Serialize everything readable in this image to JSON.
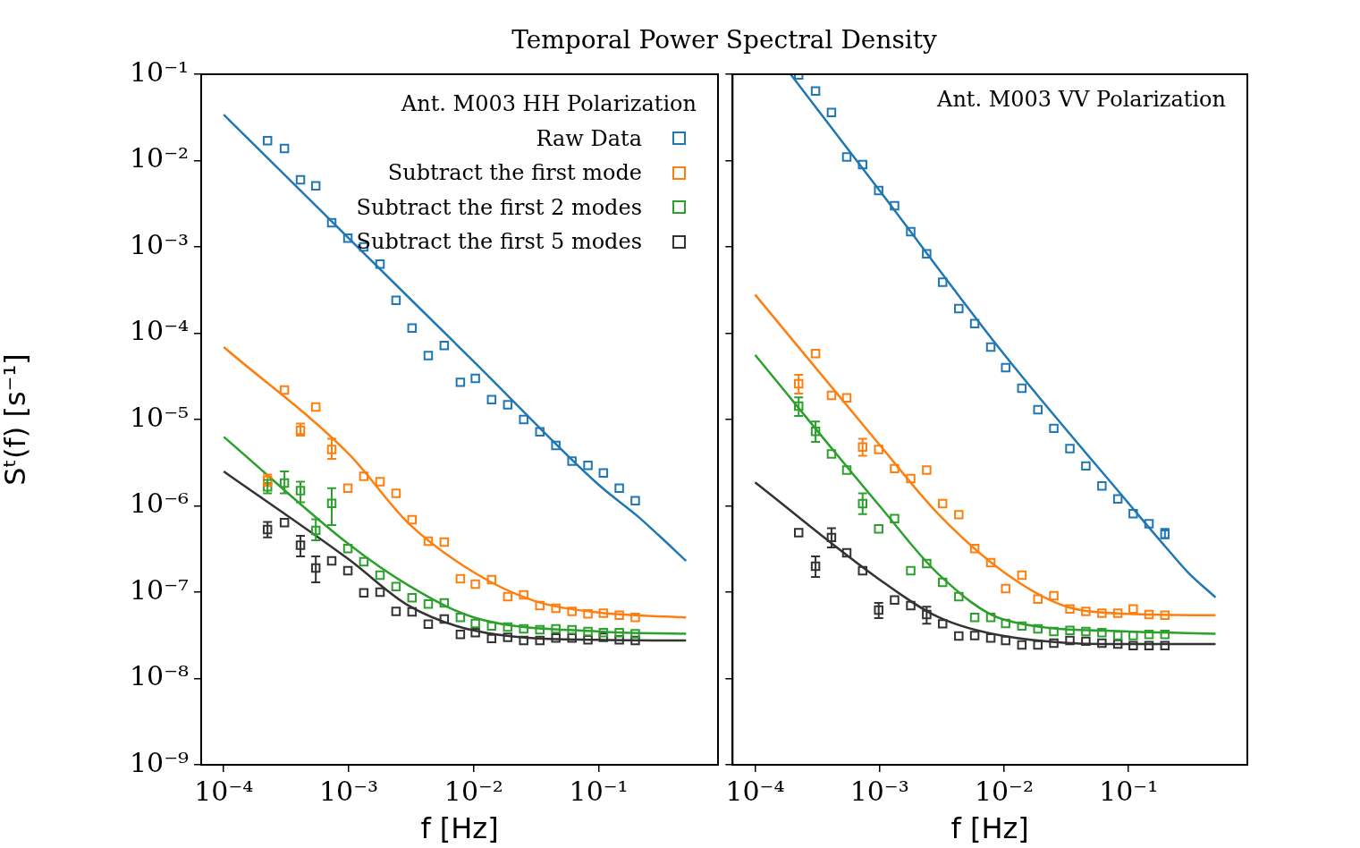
{
  "chart_data": [
    {
      "type": "scatter",
      "title": "Temporal Power Spectral Density",
      "xlabel": "f [Hz]",
      "ylabel": "Sᵗ(f) [s⁻¹]",
      "legend_title": "Ant. M003 HH Polarization",
      "legend": "top right",
      "log": "xy",
      "xlim": [
        6.6e-05,
        0.9
      ],
      "ylim": [
        1e-09,
        0.1
      ],
      "xticks": [
        {
          "value": 0.0001,
          "label": "10⁻⁴"
        },
        {
          "value": 0.001,
          "label": "10⁻³"
        },
        {
          "value": 0.01,
          "label": "10⁻²"
        },
        {
          "value": 0.1,
          "label": "10⁻¹"
        }
      ],
      "yticks": [
        {
          "value": 1e-09,
          "label": "10⁻⁹"
        },
        {
          "value": 1e-08,
          "label": "10⁻⁸"
        },
        {
          "value": 1e-07,
          "label": "10⁻⁷"
        },
        {
          "value": 1e-06,
          "label": "10⁻⁶"
        },
        {
          "value": 1e-05,
          "label": "10⁻⁵"
        },
        {
          "value": 0.0001,
          "label": "10⁻⁴"
        },
        {
          "value": 0.001,
          "label": "10⁻³"
        },
        {
          "value": 0.01,
          "label": "10⁻²"
        },
        {
          "value": 0.1,
          "label": "10⁻¹"
        }
      ],
      "x": [
        0.000224,
        0.000306,
        0.000411,
        0.000545,
        0.000731,
        0.000984,
        0.00132,
        0.00178,
        0.00239,
        0.00321,
        0.00433,
        0.00581,
        0.00782,
        0.0103,
        0.0139,
        0.0187,
        0.0251,
        0.0338,
        0.0454,
        0.0611,
        0.082,
        0.109,
        0.146,
        0.196
      ],
      "series": [
        {
          "name": "Raw Data",
          "marker": "square",
          "color": "#1f77b4",
          "values": [
            0.017,
            0.0138,
            0.006,
            0.0051,
            0.0019,
            0.00126,
            0.001,
            0.00063,
            0.00024,
            0.000115,
            5.5e-05,
            7.2e-05,
            2.7e-05,
            3e-05,
            1.7e-05,
            1.48e-05,
            1e-05,
            7.2e-06,
            5e-06,
            3.3e-06,
            2.95e-06,
            2.4e-06,
            1.6e-06,
            1.15e-06
          ]
        },
        {
          "name": "Subtract the first mode",
          "marker": "square",
          "color": "#ff7f0e",
          "values": [
            1.97e-06,
            2.2e-05,
            7.5e-06,
            1.4e-05,
            4.5e-06,
            1.6e-06,
            2.2e-06,
            1.9e-06,
            1.4e-06,
            6.9e-07,
            3.9e-07,
            3.8e-07,
            1.43e-07,
            1.24e-07,
            1.4e-07,
            8.9e-08,
            9.3e-08,
            7e-08,
            6.5e-08,
            6e-08,
            5.6e-08,
            5.7e-08,
            5.4e-08,
            5.1e-08
          ],
          "errors": [
            [
              1.7e-06,
              2.3e-06
            ],
            null,
            [
              6.5e-06,
              9e-06
            ],
            null,
            [
              3.5e-06,
              6e-06
            ],
            null,
            null,
            null,
            null,
            null,
            null,
            null,
            null,
            null,
            null,
            null,
            null,
            null,
            null,
            null,
            null,
            null,
            null,
            null
          ]
        },
        {
          "name": "Subtract the first 2 modes",
          "marker": "square",
          "color": "#2ca02c",
          "values": [
            1.66e-06,
            1.84e-06,
            1.5e-06,
            5.2e-07,
            1.07e-06,
            3.2e-07,
            2.25e-07,
            1.57e-07,
            1.16e-07,
            8.6e-08,
            7.3e-08,
            7.5e-08,
            5.1e-08,
            4.35e-08,
            4.05e-08,
            3.95e-08,
            3.76e-08,
            3.67e-08,
            3.76e-08,
            3.67e-08,
            3.5e-08,
            3.4e-08,
            3.4e-08,
            3.3e-08
          ],
          "errors": [
            [
              1.4e-06,
              2e-06
            ],
            [
              1.4e-06,
              2.5e-06
            ],
            [
              1.1e-06,
              1.9e-06
            ],
            [
              4e-07,
              7e-07
            ],
            [
              6e-07,
              1.6e-06
            ],
            null,
            null,
            null,
            null,
            null,
            null,
            null,
            null,
            null,
            null,
            null,
            null,
            null,
            null,
            null,
            null,
            null,
            null,
            null
          ]
        },
        {
          "name": "Subtract the first 5 modes",
          "marker": "square",
          "color": "#333333",
          "values": [
            5.3e-07,
            6.4e-07,
            3.5e-07,
            1.9e-07,
            2.3e-07,
            1.77e-07,
            9.8e-08,
            1e-07,
            6e-08,
            5.9e-08,
            4.25e-08,
            4.9e-08,
            3.24e-08,
            3.4e-08,
            2.9e-08,
            3e-08,
            2.75e-08,
            2.75e-08,
            2.95e-08,
            2.95e-08,
            2.8e-08,
            3e-08,
            2.8e-08,
            2.75e-08
          ],
          "errors": [
            [
              4.3e-07,
              6.5e-07
            ],
            null,
            [
              2.6e-07,
              4.5e-07
            ],
            [
              1.3e-07,
              2.6e-07
            ],
            null,
            null,
            null,
            null,
            null,
            null,
            null,
            null,
            null,
            null,
            null,
            null,
            null,
            null,
            null,
            null,
            null,
            null,
            null,
            null
          ]
        },
        {
          "type": "line",
          "color": "#1f77b4",
          "x": [
            0.0001,
            0.001,
            0.01,
            0.1,
            0.2,
            0.3,
            0.5
          ],
          "values": [
            0.034,
            0.00126,
            4.7e-05,
            1.75e-06,
            7.8e-07,
            4.6e-07,
            2.3e-07
          ],
          "marker": "none"
        },
        {
          "type": "line",
          "color": "#ff7f0e",
          "x": [
            0.0001,
            0.001,
            0.003,
            0.01,
            0.03,
            0.1,
            0.5
          ],
          "values": [
            6.9e-05,
            4e-06,
            6.3e-07,
            1.7e-07,
            8e-08,
            5.8e-08,
            5.1e-08
          ],
          "marker": "none"
        },
        {
          "type": "line",
          "color": "#2ca02c",
          "x": [
            0.0001,
            0.001,
            0.003,
            0.01,
            0.1,
            0.5
          ],
          "values": [
            6.3e-06,
            3.6e-07,
            1.2e-07,
            5.1e-08,
            3.5e-08,
            3.3e-08
          ],
          "marker": "none"
        },
        {
          "type": "line",
          "color": "#333333",
          "x": [
            0.0001,
            0.001,
            0.003,
            0.01,
            0.1,
            0.5
          ],
          "values": [
            2.5e-06,
            2.4e-07,
            7e-08,
            3.6e-08,
            2.8e-08,
            2.75e-08
          ],
          "marker": "none"
        }
      ]
    },
    {
      "type": "scatter",
      "xlabel": "f [Hz]",
      "annotations": [
        "Ant. M003 VV Polarization"
      ],
      "log": "xy",
      "tick_labels": "x",
      "xlim": [
        6.6e-05,
        0.9
      ],
      "ylim": [
        1e-09,
        0.1
      ],
      "xticks": [
        {
          "value": 0.0001,
          "label": "10⁻⁴"
        },
        {
          "value": 0.001,
          "label": "10⁻³"
        },
        {
          "value": 0.01,
          "label": "10⁻²"
        },
        {
          "value": 0.1,
          "label": "10⁻¹"
        }
      ],
      "yticks": [
        {
          "value": 1e-09,
          "label": null
        },
        {
          "value": 1e-08,
          "label": null
        },
        {
          "value": 1e-07,
          "label": null
        },
        {
          "value": 1e-06,
          "label": null
        },
        {
          "value": 1e-05,
          "label": null
        },
        {
          "value": 0.0001,
          "label": null
        },
        {
          "value": 0.001,
          "label": null
        },
        {
          "value": 0.01,
          "label": null
        },
        {
          "value": 0.1,
          "label": null
        }
      ],
      "x": [
        0.000224,
        0.000306,
        0.000411,
        0.000545,
        0.000731,
        0.000984,
        0.00132,
        0.00178,
        0.00239,
        0.00321,
        0.00433,
        0.00581,
        0.00782,
        0.0103,
        0.0139,
        0.0187,
        0.0251,
        0.0338,
        0.0454,
        0.0611,
        0.082,
        0.109,
        0.146,
        0.196
      ],
      "series": [
        {
          "marker": "square",
          "color": "#1f77b4",
          "values": [
            0.098,
            0.064,
            0.036,
            0.011,
            0.009,
            0.0045,
            0.003,
            0.0015,
            0.00083,
            0.00039,
            0.000193,
            0.000129,
            6.9e-05,
            4e-05,
            2.3e-05,
            1.3e-05,
            7.9e-06,
            4.6e-06,
            2.9e-06,
            1.7e-06,
            1.2e-06,
            8.1e-07,
            6.2e-07,
            4.7e-07
          ],
          "errors": [
            null,
            null,
            null,
            null,
            null,
            null,
            null,
            null,
            null,
            null,
            null,
            null,
            null,
            null,
            null,
            null,
            null,
            null,
            null,
            null,
            null,
            null,
            null,
            [
              4.2e-07,
              5.4e-07
            ]
          ]
        },
        {
          "marker": "square",
          "color": "#ff7f0e",
          "values": [
            2.6e-05,
            5.8e-05,
            1.9e-05,
            1.78e-05,
            4.8e-06,
            4.5e-06,
            2.7e-06,
            2.07e-06,
            2.6e-06,
            1.06e-06,
            7.9e-07,
            3.2e-07,
            2.2e-07,
            1.1e-07,
            1.57e-07,
            8.3e-08,
            9.1e-08,
            6.4e-08,
            6e-08,
            5.7e-08,
            5.7e-08,
            6.4e-08,
            5.5e-08,
            5.4e-08
          ],
          "errors": [
            [
              2e-05,
              3.3e-05
            ],
            null,
            null,
            null,
            [
              3.8e-06,
              6e-06
            ],
            null,
            null,
            null,
            null,
            null,
            null,
            null,
            null,
            null,
            null,
            null,
            null,
            null,
            null,
            null,
            null,
            null,
            null,
            null
          ]
        },
        {
          "marker": "square",
          "color": "#2ca02c",
          "values": [
            1.43e-05,
            7.3e-06,
            4e-06,
            2.6e-06,
            1.06e-06,
            5.4e-07,
            7.1e-07,
            1.77e-07,
            2.15e-07,
            1.3e-07,
            8.9e-08,
            5.1e-08,
            5.1e-08,
            4.35e-08,
            4.05e-08,
            3.76e-08,
            3.5e-08,
            3.6e-08,
            3.5e-08,
            3.4e-08,
            3.15e-08,
            3.15e-08,
            3.24e-08,
            3.24e-08
          ],
          "errors": [
            [
              1.1e-05,
              1.8e-05
            ],
            [
              5.5e-06,
              9.5e-06
            ],
            null,
            null,
            [
              8e-07,
              1.4e-06
            ],
            null,
            null,
            null,
            null,
            null,
            null,
            null,
            null,
            null,
            null,
            null,
            null,
            null,
            null,
            null,
            null,
            null,
            null,
            null
          ]
        },
        {
          "marker": "square",
          "color": "#333333",
          "values": [
            4.9e-07,
            2e-07,
            4.3e-07,
            2.86e-07,
            1.77e-07,
            6.2e-08,
            8.1e-08,
            7e-08,
            5.5e-08,
            4.3e-08,
            3.1e-08,
            3.15e-08,
            2.95e-08,
            2.75e-08,
            2.45e-08,
            2.45e-08,
            2.57e-08,
            2.75e-08,
            2.7e-08,
            2.57e-08,
            2.5e-08,
            2.4e-08,
            2.4e-08,
            2.4e-08
          ],
          "errors": [
            null,
            [
              1.5e-07,
              2.6e-07
            ],
            [
              3.3e-07,
              5.5e-07
            ],
            null,
            null,
            [
              5e-08,
              7.5e-08
            ],
            null,
            null,
            [
              4.3e-08,
              6.8e-08
            ],
            null,
            null,
            null,
            null,
            null,
            null,
            null,
            null,
            null,
            null,
            null,
            null,
            null,
            null,
            null
          ]
        },
        {
          "type": "line",
          "color": "#1f77b4",
          "x": [
            0.000193,
            0.001,
            0.01,
            0.1,
            0.2,
            0.3,
            0.5
          ],
          "values": [
            0.1,
            0.0045,
            5.7e-05,
            1.07e-06,
            3.3e-07,
            1.7e-07,
            8.7e-08
          ],
          "marker": "none"
        },
        {
          "type": "line",
          "color": "#ff7f0e",
          "x": [
            0.0001,
            0.001,
            0.003,
            0.01,
            0.03,
            0.1,
            0.5
          ],
          "values": [
            0.00028,
            5.1e-06,
            7.9e-07,
            1.7e-07,
            7e-08,
            5.6e-08,
            5.4e-08
          ],
          "marker": "none"
        },
        {
          "type": "line",
          "color": "#2ca02c",
          "x": [
            0.0001,
            0.001,
            0.003,
            0.01,
            0.1,
            0.5
          ],
          "values": [
            5.6e-05,
            1e-06,
            1.6e-07,
            4.8e-08,
            3.5e-08,
            3.3e-08
          ],
          "marker": "none"
        },
        {
          "type": "line",
          "color": "#333333",
          "x": [
            0.0001,
            0.001,
            0.003,
            0.01,
            0.1,
            0.5
          ],
          "values": [
            1.87e-06,
            1.4e-07,
            5.1e-08,
            3.1e-08,
            2.5e-08,
            2.5e-08
          ],
          "marker": "none"
        }
      ]
    }
  ]
}
